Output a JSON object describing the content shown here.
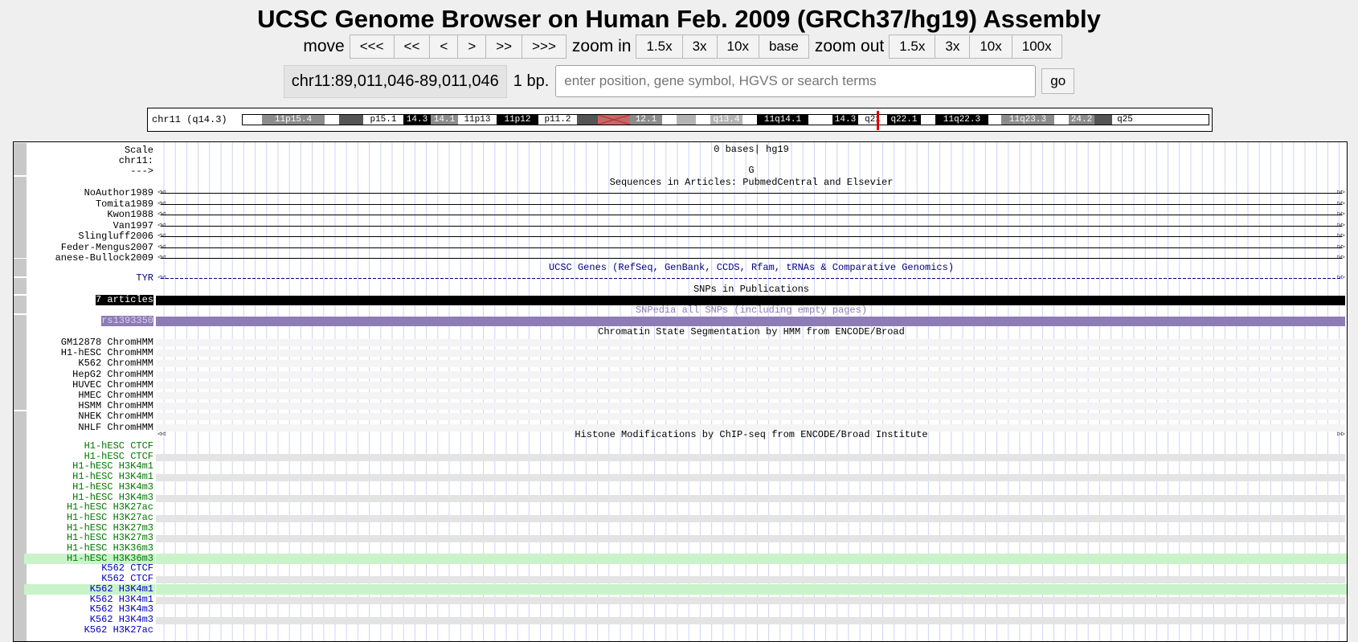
{
  "title": "UCSC Genome Browser on Human Feb. 2009 (GRCh37/hg19) Assembly",
  "nav": {
    "move_label": "move",
    "move_buttons": [
      "<<<",
      "<<",
      "<",
      ">",
      ">>",
      ">>>"
    ],
    "zoom_in_label": "zoom in",
    "zoom_in_buttons": [
      "1.5x",
      "3x",
      "10x",
      "base"
    ],
    "zoom_out_label": "zoom out",
    "zoom_out_buttons": [
      "1.5x",
      "3x",
      "10x",
      "100x"
    ]
  },
  "position": {
    "value": "chr11:89,011,046-89,011,046",
    "size": "1 bp.",
    "search_placeholder": "enter position, gene symbol, HGVS or search terms",
    "go_label": "go"
  },
  "ideogram": {
    "label": "chr11 (q14.3)",
    "bands": [
      {
        "name": "",
        "stain": "white"
      },
      {
        "name": "11p15.4",
        "stain": "gray"
      },
      {
        "name": "",
        "stain": "white"
      },
      {
        "name": "",
        "stain": "dark"
      },
      {
        "name": "p15.1",
        "stain": "white"
      },
      {
        "name": "14.3",
        "stain": "black"
      },
      {
        "name": "14.1",
        "stain": "gray"
      },
      {
        "name": "11p13",
        "stain": "white"
      },
      {
        "name": "11p12",
        "stain": "black"
      },
      {
        "name": "p11.2",
        "stain": "white"
      },
      {
        "name": "",
        "stain": "dark"
      },
      {
        "name": "",
        "stain": "centromere"
      },
      {
        "name": "12.1",
        "stain": "gray"
      },
      {
        "name": "",
        "stain": "white"
      },
      {
        "name": "",
        "stain": "light"
      },
      {
        "name": "",
        "stain": "white"
      },
      {
        "name": "q13.4",
        "stain": "light"
      },
      {
        "name": "",
        "stain": "white"
      },
      {
        "name": "11q14.1",
        "stain": "black"
      },
      {
        "name": "",
        "stain": "white"
      },
      {
        "name": "14.3",
        "stain": "black"
      },
      {
        "name": "q21",
        "stain": "white"
      },
      {
        "name": "q22.1",
        "stain": "black"
      },
      {
        "name": "",
        "stain": "white"
      },
      {
        "name": "11q22.3",
        "stain": "black"
      },
      {
        "name": "",
        "stain": "white"
      },
      {
        "name": "11q23.3",
        "stain": "gray"
      },
      {
        "name": "",
        "stain": "white"
      },
      {
        "name": "24.2",
        "stain": "gray"
      },
      {
        "name": "",
        "stain": "dark"
      },
      {
        "name": "q25",
        "stain": "white"
      }
    ]
  },
  "colors": {
    "marker": "#e00000",
    "genes": "#000080",
    "snpedia": "#8e7cb6",
    "green_labels": "#007800",
    "blue_labels": "#0000c0",
    "highlight": "#c9f3c9"
  },
  "tracks": {
    "scale": {
      "labels": [
        "Scale",
        "chr11:",
        "--->"
      ],
      "ruler": "0 bases| hg19",
      "base": "G"
    },
    "articles": {
      "title": "Sequences in Articles: PubmedCentral and Elsevier",
      "items": [
        "NoAuthor1989",
        "Tomita1989",
        "Kwon1988",
        "Van1997",
        "Slingluff2006",
        "Feder-Mengus2007",
        "anese-Bullock2009"
      ]
    },
    "genes": {
      "title": "UCSC Genes (RefSeq, GenBank, CCDS, Rfam, tRNAs & Comparative Genomics)",
      "label": "TYR"
    },
    "snps_pub": {
      "title": "SNPs in Publications",
      "label": "7 articles"
    },
    "snpedia": {
      "title": "SNPedia all SNPs (including empty pages)",
      "label": "rs1393350"
    },
    "chromhmm": {
      "title": "Chromatin State Segmentation by HMM from ENCODE/Broad",
      "items": [
        "GM12878 ChromHMM",
        "H1-hESC ChromHMM",
        "K562 ChromHMM",
        "HepG2 ChromHMM",
        "HUVEC ChromHMM",
        "HMEC ChromHMM",
        "HSMM ChromHMM",
        "NHEK ChromHMM",
        "NHLF ChromHMM"
      ]
    },
    "histone": {
      "title": "Histone Modifications by ChIP-seq from ENCODE/Broad Institute",
      "items": [
        {
          "label": "H1-hESC CTCF",
          "color": "green"
        },
        {
          "label": "H1-hESC CTCF",
          "color": "green"
        },
        {
          "label": "H1-hESC H3K4m1",
          "color": "green"
        },
        {
          "label": "H1-hESC H3K4m1",
          "color": "green"
        },
        {
          "label": "H1-hESC H3K4m3",
          "color": "green"
        },
        {
          "label": "H1-hESC H3K4m3",
          "color": "green"
        },
        {
          "label": "H1-hESC H3K27ac",
          "color": "green"
        },
        {
          "label": "H1-hESC H3K27ac",
          "color": "green"
        },
        {
          "label": "H1-hESC H3K27m3",
          "color": "green"
        },
        {
          "label": "H1-hESC H3K27m3",
          "color": "green"
        },
        {
          "label": "H1-hESC H3K36m3",
          "color": "green"
        },
        {
          "label": "H1-hESC H3K36m3",
          "color": "green"
        },
        {
          "label": "K562 CTCF",
          "color": "blue"
        },
        {
          "label": "K562 CTCF",
          "color": "blue"
        },
        {
          "label": "K562 H3K4m1",
          "color": "blue"
        },
        {
          "label": "K562 H3K4m1",
          "color": "blue"
        },
        {
          "label": "K562 H3K4m3",
          "color": "blue"
        },
        {
          "label": "K562 H3K4m3",
          "color": "blue"
        },
        {
          "label": "K562 H3K27ac",
          "color": "blue"
        }
      ]
    }
  }
}
